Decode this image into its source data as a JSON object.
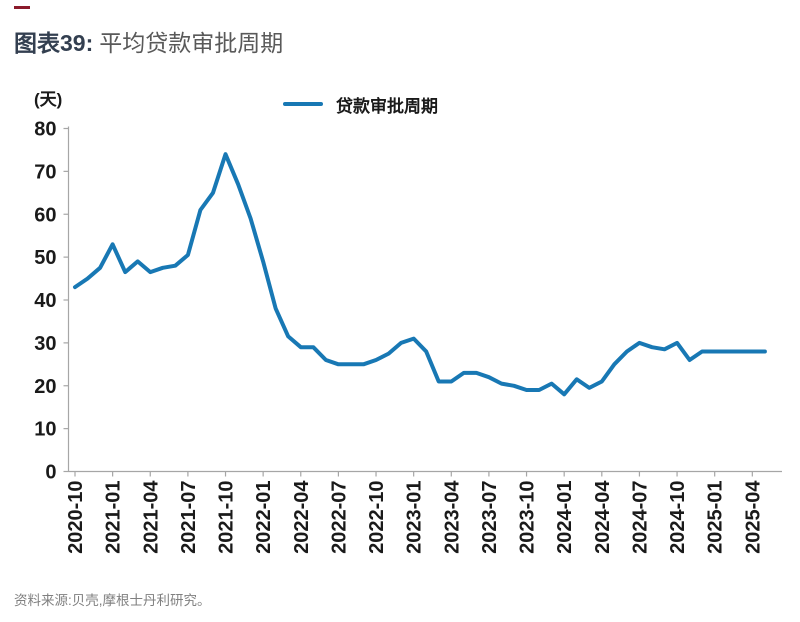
{
  "colors": {
    "line_blue": "#1878b4",
    "title_navy": "#333f50",
    "subtitle_gray": "#595959",
    "rule_maroon": "#8b1a2b",
    "axis_gray": "#a6a6a6",
    "tick_text": "#1a1a1a",
    "source_gray": "#808080"
  },
  "title": {
    "number": "图表39:",
    "text": "平均贷款审批周期"
  },
  "y_axis_unit": "(天)",
  "legend": {
    "label": "贷款审批周期"
  },
  "source_note": "资料来源:贝壳,摩根士丹利研究。",
  "chart_data": {
    "type": "line",
    "title": "平均贷款审批周期",
    "ylabel": "(天)",
    "ylim": [
      0,
      80
    ],
    "y_ticks": [
      0,
      10,
      20,
      30,
      40,
      50,
      60,
      70,
      80
    ],
    "grid": false,
    "legend_position": "top",
    "x_tick_every_months": 3,
    "x": [
      "2020-10",
      "2020-11",
      "2020-12",
      "2021-01",
      "2021-02",
      "2021-03",
      "2021-04",
      "2021-05",
      "2021-06",
      "2021-07",
      "2021-08",
      "2021-09",
      "2021-10",
      "2021-11",
      "2021-12",
      "2022-01",
      "2022-02",
      "2022-03",
      "2022-04",
      "2022-05",
      "2022-06",
      "2022-07",
      "2022-08",
      "2022-09",
      "2022-10",
      "2022-11",
      "2022-12",
      "2023-01",
      "2023-02",
      "2023-03",
      "2023-04",
      "2023-05",
      "2023-06",
      "2023-07",
      "2023-08",
      "2023-09",
      "2023-10",
      "2023-11",
      "2023-12",
      "2024-01",
      "2024-02",
      "2024-03",
      "2024-04",
      "2024-05",
      "2024-06",
      "2024-07",
      "2024-08",
      "2024-09",
      "2024-10",
      "2024-11",
      "2024-12",
      "2025-01",
      "2025-02",
      "2025-03",
      "2025-04",
      "2025-05"
    ],
    "series": [
      {
        "name": "贷款审批周期",
        "values": [
          43,
          45,
          47.5,
          53,
          46.5,
          49,
          46.5,
          47.5,
          48,
          50.5,
          61,
          65,
          74,
          67,
          59,
          49,
          38,
          31.5,
          29,
          29,
          26,
          25,
          25,
          25,
          26,
          27.5,
          30,
          31,
          28,
          21,
          21,
          23,
          23,
          22,
          20.5,
          20,
          19,
          19,
          20.5,
          18,
          21.5,
          19.5,
          21,
          25,
          28,
          30,
          29,
          28.5,
          30,
          26,
          28,
          28,
          28,
          28,
          28,
          28
        ]
      }
    ]
  }
}
